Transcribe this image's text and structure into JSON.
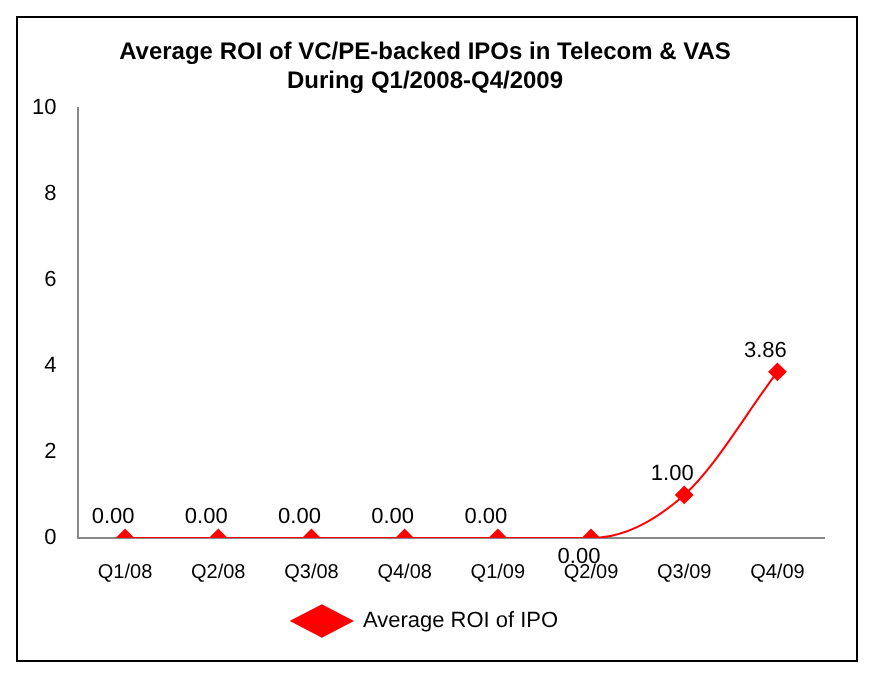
{
  "chart_data": {
    "type": "line",
    "title": [
      "Average ROI of VC/PE-backed IPOs in Telecom & VAS",
      "During Q1/2008-Q4/2009"
    ],
    "categories": [
      "Q1/08",
      "Q2/08",
      "Q3/08",
      "Q4/08",
      "Q1/09",
      "Q2/09",
      "Q3/09",
      "Q4/09"
    ],
    "series": [
      {
        "name": "Average ROI of IPO",
        "color": "#ff0000",
        "values": [
          0,
          0,
          0,
          0,
          0,
          0,
          1,
          3.86
        ],
        "value_labels": [
          "0.00",
          "0.00",
          "0.00",
          "0.00",
          "0.00",
          "0.00",
          "1.00",
          "3.86"
        ]
      }
    ],
    "ylim": [
      0,
      10
    ],
    "yticks": [
      0,
      2,
      4,
      6,
      8,
      10
    ],
    "grid": false,
    "legend": "bottom",
    "marker": "diamond",
    "line_style": "solid"
  }
}
